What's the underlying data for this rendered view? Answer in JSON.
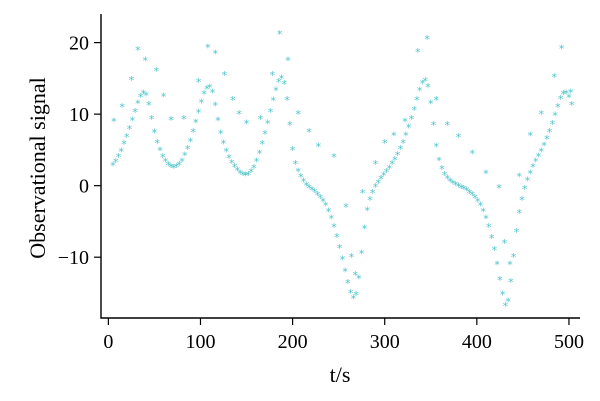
{
  "chart_data": {
    "type": "scatter",
    "xlabel": "t/s",
    "ylabel": "Observational signal",
    "xlim": [
      -8,
      512
    ],
    "ylim": [
      -18.5,
      24
    ],
    "xticks": [
      0,
      100,
      200,
      300,
      400,
      500
    ],
    "yticks": [
      -10,
      0,
      10,
      20
    ],
    "marker": "*",
    "color": "#4cc3c9",
    "grid": false,
    "series": [
      {
        "main_curve": [
          [
            5,
            2.8
          ],
          [
            8,
            3.3
          ],
          [
            11,
            4.0
          ],
          [
            14,
            4.8
          ],
          [
            17,
            5.8
          ],
          [
            20,
            6.8
          ],
          [
            23,
            7.9
          ],
          [
            26,
            9.1
          ],
          [
            29,
            10.3
          ],
          [
            32,
            11.5
          ],
          [
            35,
            12.4
          ],
          [
            38,
            12.9
          ],
          [
            41,
            12.6
          ],
          [
            44,
            11.3
          ],
          [
            47,
            9.3
          ],
          [
            50,
            7.4
          ],
          [
            53,
            6.0
          ],
          [
            56,
            4.9
          ],
          [
            59,
            4.0
          ],
          [
            62,
            3.4
          ],
          [
            65,
            2.9
          ],
          [
            68,
            2.6
          ],
          [
            71,
            2.5
          ],
          [
            74,
            2.6
          ],
          [
            77,
            2.9
          ],
          [
            80,
            3.4
          ],
          [
            83,
            4.2
          ],
          [
            86,
            5.1
          ],
          [
            89,
            6.2
          ],
          [
            92,
            7.5
          ],
          [
            95,
            8.8
          ],
          [
            98,
            10.2
          ],
          [
            101,
            11.6
          ],
          [
            104,
            12.8
          ],
          [
            107,
            13.5
          ],
          [
            110,
            13.7
          ],
          [
            113,
            13.0
          ],
          [
            116,
            11.2
          ],
          [
            119,
            9.1
          ],
          [
            122,
            7.3
          ],
          [
            125,
            5.9
          ],
          [
            128,
            4.8
          ],
          [
            131,
            3.9
          ],
          [
            134,
            3.2
          ],
          [
            137,
            2.6
          ],
          [
            140,
            2.1
          ],
          [
            143,
            1.7
          ],
          [
            146,
            1.5
          ],
          [
            149,
            1.4
          ],
          [
            152,
            1.5
          ],
          [
            155,
            1.9
          ],
          [
            158,
            2.5
          ],
          [
            161,
            3.4
          ],
          [
            164,
            4.5
          ],
          [
            167,
            5.8
          ],
          [
            170,
            7.2
          ],
          [
            173,
            8.7
          ],
          [
            176,
            10.3
          ],
          [
            179,
            11.9
          ],
          [
            182,
            13.3
          ],
          [
            185,
            14.5
          ],
          [
            188,
            15.0
          ],
          [
            191,
            14.2
          ],
          [
            194,
            12.0
          ],
          [
            197,
            8.5
          ],
          [
            200,
            5.0
          ],
          [
            203,
            3.0
          ],
          [
            206,
            2.0
          ],
          [
            209,
            1.2
          ],
          [
            212,
            0.6
          ],
          [
            215,
            0.0
          ],
          [
            218,
            -0.3
          ],
          [
            221,
            -0.6
          ],
          [
            224,
            -0.9
          ],
          [
            227,
            -1.3
          ],
          [
            230,
            -1.7
          ],
          [
            233,
            -2.2
          ],
          [
            236,
            -2.8
          ],
          [
            239,
            -3.6
          ],
          [
            242,
            -4.6
          ],
          [
            245,
            -5.8
          ],
          [
            248,
            -7.2
          ],
          [
            251,
            -8.7
          ],
          [
            254,
            -10.3
          ],
          [
            257,
            -12.0
          ],
          [
            260,
            -13.6
          ],
          [
            263,
            -15.0
          ],
          [
            266,
            -15.8
          ],
          [
            269,
            -15.3
          ],
          [
            272,
            -13.0
          ],
          [
            275,
            -9.5
          ],
          [
            278,
            -6.0
          ],
          [
            281,
            -3.5
          ],
          [
            284,
            -2.0
          ],
          [
            287,
            -1.0
          ],
          [
            290,
            -0.2
          ],
          [
            293,
            0.4
          ],
          [
            296,
            0.9
          ],
          [
            299,
            1.4
          ],
          [
            302,
            1.9
          ],
          [
            305,
            2.4
          ],
          [
            308,
            3.0
          ],
          [
            311,
            3.6
          ],
          [
            314,
            4.3
          ],
          [
            317,
            5.1
          ],
          [
            320,
            6.0
          ],
          [
            323,
            7.0
          ],
          [
            326,
            8.1
          ],
          [
            329,
            9.3
          ],
          [
            332,
            10.6
          ],
          [
            335,
            12.0
          ],
          [
            338,
            13.3
          ],
          [
            341,
            14.3
          ],
          [
            344,
            14.6
          ],
          [
            347,
            13.8
          ],
          [
            350,
            11.5
          ],
          [
            353,
            8.5
          ],
          [
            356,
            5.5
          ],
          [
            359,
            3.5
          ],
          [
            362,
            2.3
          ],
          [
            365,
            1.5
          ],
          [
            368,
            1.0
          ],
          [
            371,
            0.6
          ],
          [
            374,
            0.3
          ],
          [
            377,
            0.1
          ],
          [
            380,
            -0.1
          ],
          [
            383,
            -0.3
          ],
          [
            386,
            -0.5
          ],
          [
            389,
            -0.7
          ],
          [
            392,
            -1.0
          ],
          [
            395,
            -1.3
          ],
          [
            398,
            -1.7
          ],
          [
            401,
            -2.2
          ],
          [
            404,
            -2.8
          ],
          [
            407,
            -3.6
          ],
          [
            410,
            -4.6
          ],
          [
            413,
            -5.8
          ],
          [
            416,
            -7.3
          ],
          [
            419,
            -9.0
          ],
          [
            422,
            -11.0
          ],
          [
            425,
            -13.2
          ],
          [
            428,
            -15.2
          ],
          [
            431,
            -16.8
          ],
          [
            434,
            -16.2
          ],
          [
            437,
            -13.5
          ],
          [
            440,
            -10.0
          ],
          [
            443,
            -6.5
          ],
          [
            446,
            -3.8
          ],
          [
            449,
            -2.0
          ],
          [
            452,
            -0.5
          ],
          [
            455,
            0.7
          ],
          [
            458,
            1.7
          ],
          [
            461,
            2.6
          ],
          [
            464,
            3.4
          ],
          [
            467,
            4.1
          ],
          [
            470,
            4.8
          ],
          [
            473,
            5.6
          ],
          [
            476,
            6.5
          ],
          [
            479,
            7.5
          ],
          [
            482,
            8.6
          ],
          [
            485,
            9.8
          ],
          [
            488,
            11.0
          ],
          [
            491,
            12.1
          ],
          [
            494,
            12.8
          ],
          [
            497,
            12.9
          ],
          [
            500,
            12.3
          ],
          [
            503,
            11.3
          ]
        ],
        "scattered_points": [
          [
            6,
            9.0
          ],
          [
            15,
            11.0
          ],
          [
            25,
            14.8
          ],
          [
            32,
            19.0
          ],
          [
            40,
            17.5
          ],
          [
            52,
            16.0
          ],
          [
            60,
            12.5
          ],
          [
            68,
            9.2
          ],
          [
            82,
            9.3
          ],
          [
            98,
            14.5
          ],
          [
            108,
            19.3
          ],
          [
            116,
            18.5
          ],
          [
            126,
            15.5
          ],
          [
            135,
            12.0
          ],
          [
            142,
            10.0
          ],
          [
            150,
            8.7
          ],
          [
            165,
            9.3
          ],
          [
            178,
            15.5
          ],
          [
            186,
            21.2
          ],
          [
            195,
            17.5
          ],
          [
            206,
            10.0
          ],
          [
            218,
            7.5
          ],
          [
            228,
            5.5
          ],
          [
            245,
            4.0
          ],
          [
            258,
            -3.0
          ],
          [
            264,
            -10.0
          ],
          [
            268,
            -12.5
          ],
          [
            276,
            -1.0
          ],
          [
            290,
            3.0
          ],
          [
            300,
            6.0
          ],
          [
            310,
            7.0
          ],
          [
            322,
            9.0
          ],
          [
            336,
            18.7
          ],
          [
            346,
            20.5
          ],
          [
            356,
            12.0
          ],
          [
            368,
            8.5
          ],
          [
            380,
            6.8
          ],
          [
            395,
            4.5
          ],
          [
            410,
            1.7
          ],
          [
            424,
            -0.3
          ],
          [
            430,
            -8.0
          ],
          [
            436,
            -11.0
          ],
          [
            446,
            1.3
          ],
          [
            458,
            7.0
          ],
          [
            470,
            10.0
          ],
          [
            484,
            15.2
          ],
          [
            492,
            19.2
          ],
          [
            502,
            13.0
          ]
        ]
      }
    ]
  }
}
